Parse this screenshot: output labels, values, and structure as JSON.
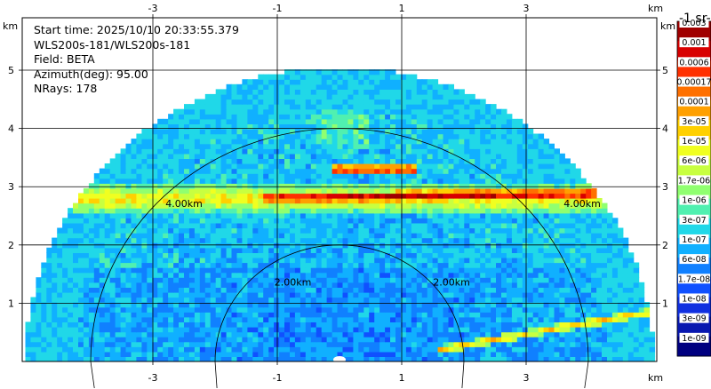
{
  "info": {
    "lines": [
      "Start time: 2025/10/10 20:33:55.379",
      "WLS200s-181/WLS200s-181",
      "Field: BETA",
      "Azimuth(deg): 95.00",
      "NRays: 178"
    ]
  },
  "axis_unit": "km",
  "colorbar": {
    "unit_label": "-1 sr-",
    "labels": [
      "0.003",
      "0.001",
      "0.0006",
      "0.00017",
      "0.0001",
      "3e-05",
      "1e-05",
      "6e-06",
      "1.7e-06",
      "1e-06",
      "3e-07",
      "1e-07",
      "6e-08",
      "1.7e-08",
      "1e-08",
      "3e-09",
      "1e-09"
    ],
    "colors": [
      "#a00000",
      "#d80000",
      "#ff3000",
      "#ff7000",
      "#ffa000",
      "#ffd000",
      "#f0ff20",
      "#c8ff40",
      "#90ff70",
      "#50f0b0",
      "#20d8e8",
      "#10b0ff",
      "#1080ff",
      "#1050ff",
      "#1030e0",
      "#0818b0",
      "#000080"
    ]
  },
  "chart_data": {
    "type": "heatmap",
    "title": "",
    "xlabel": "km",
    "ylabel": "km",
    "x_ticks": [
      -3,
      -1,
      1,
      3
    ],
    "y_ticks": [
      1,
      2,
      3,
      4,
      5
    ],
    "xlim": [
      -5.1,
      5.1
    ],
    "ylim": [
      0,
      5.9
    ],
    "grid": true,
    "range_rings_km": [
      2.0,
      4.0
    ],
    "ring_labels": [
      "2.00km",
      "2.00km",
      "4.00km",
      "4.00km"
    ],
    "max_range_km": 5.05,
    "field": "BETA",
    "colormap_colors": [
      "#000080",
      "#0818b0",
      "#1030e0",
      "#1050ff",
      "#1080ff",
      "#10b0ff",
      "#20d8e8",
      "#50f0b0",
      "#90ff70",
      "#c8ff40",
      "#f0ff20",
      "#ffd000",
      "#ffa000",
      "#ff7000",
      "#ff3000",
      "#d80000",
      "#a00000"
    ],
    "features": [
      {
        "name": "cloud layer",
        "y_km": 2.85,
        "x_range_km": [
          -1.3,
          4.4
        ],
        "level": 0.95
      },
      {
        "name": "upper cloud",
        "y_km": 3.3,
        "x_range_km": [
          -0.2,
          1.2
        ],
        "level": 0.9
      },
      {
        "name": "aerosol layer",
        "y_km": 2.8,
        "x_range_km": [
          -5.0,
          5.0
        ],
        "level": 0.65
      },
      {
        "name": "low beam streak",
        "y_km": 0.8,
        "x_range_km": [
          1.5,
          5.0
        ],
        "level": 0.7
      }
    ]
  }
}
